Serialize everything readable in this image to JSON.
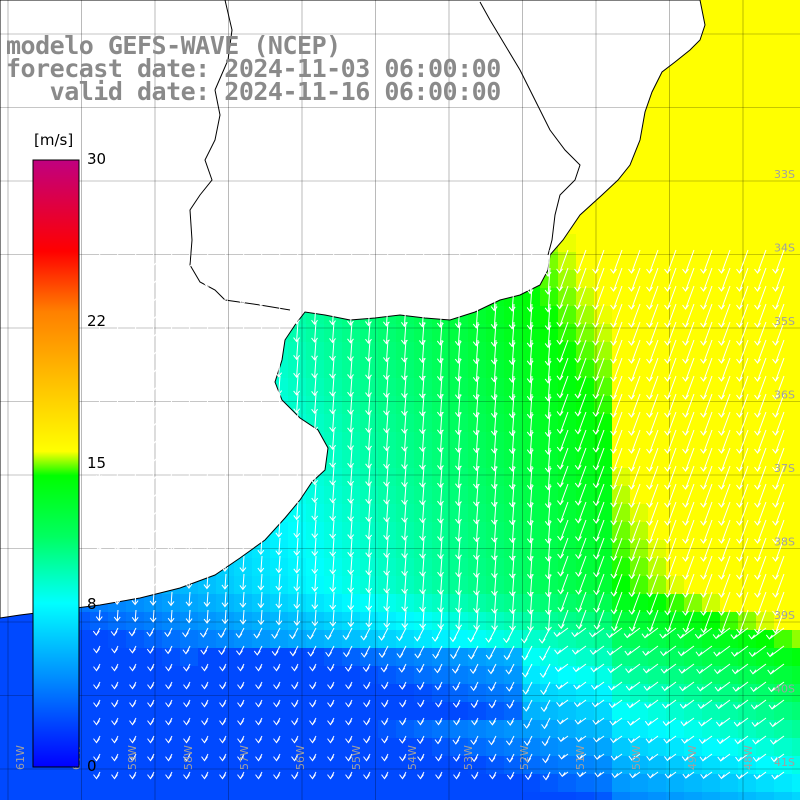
{
  "title": {
    "line1": "modelo GEFS-WAVE (NCEP)",
    "line2": "forecast date: 2024-11-03 06:00:00",
    "line3": "   valid date: 2024-11-16 06:00:00"
  },
  "colorbar": {
    "unit": "[m/s]",
    "min": 0,
    "max": 30,
    "ticks": [
      {
        "value": 30,
        "label": "30"
      },
      {
        "value": 22,
        "label": "22"
      },
      {
        "value": 15,
        "label": "15"
      },
      {
        "value": 8,
        "label": "8"
      },
      {
        "value": 0,
        "label": "0"
      }
    ],
    "colors": [
      "#0000ff",
      "#00a0ff",
      "#00ffff",
      "#00ff00",
      "#ffff00",
      "#ff8000",
      "#ff0000",
      "#c00080"
    ]
  },
  "map": {
    "lon_range": [
      -64,
      -47
    ],
    "lat_range": [
      -42,
      -30
    ],
    "lat_labels": [
      "33S",
      "34S",
      "35S",
      "36S",
      "37S",
      "38S",
      "39S",
      "40S",
      "41S"
    ],
    "lon_labels": [
      "61W",
      "60W",
      "59W",
      "58W",
      "57W",
      "56W",
      "55W",
      "54W",
      "53W",
      "52W",
      "51W",
      "50W",
      "49W",
      "48W"
    ],
    "land_color": "#ffffff",
    "grid_color": "#000000",
    "arrow_color": "#ffffff"
  }
}
